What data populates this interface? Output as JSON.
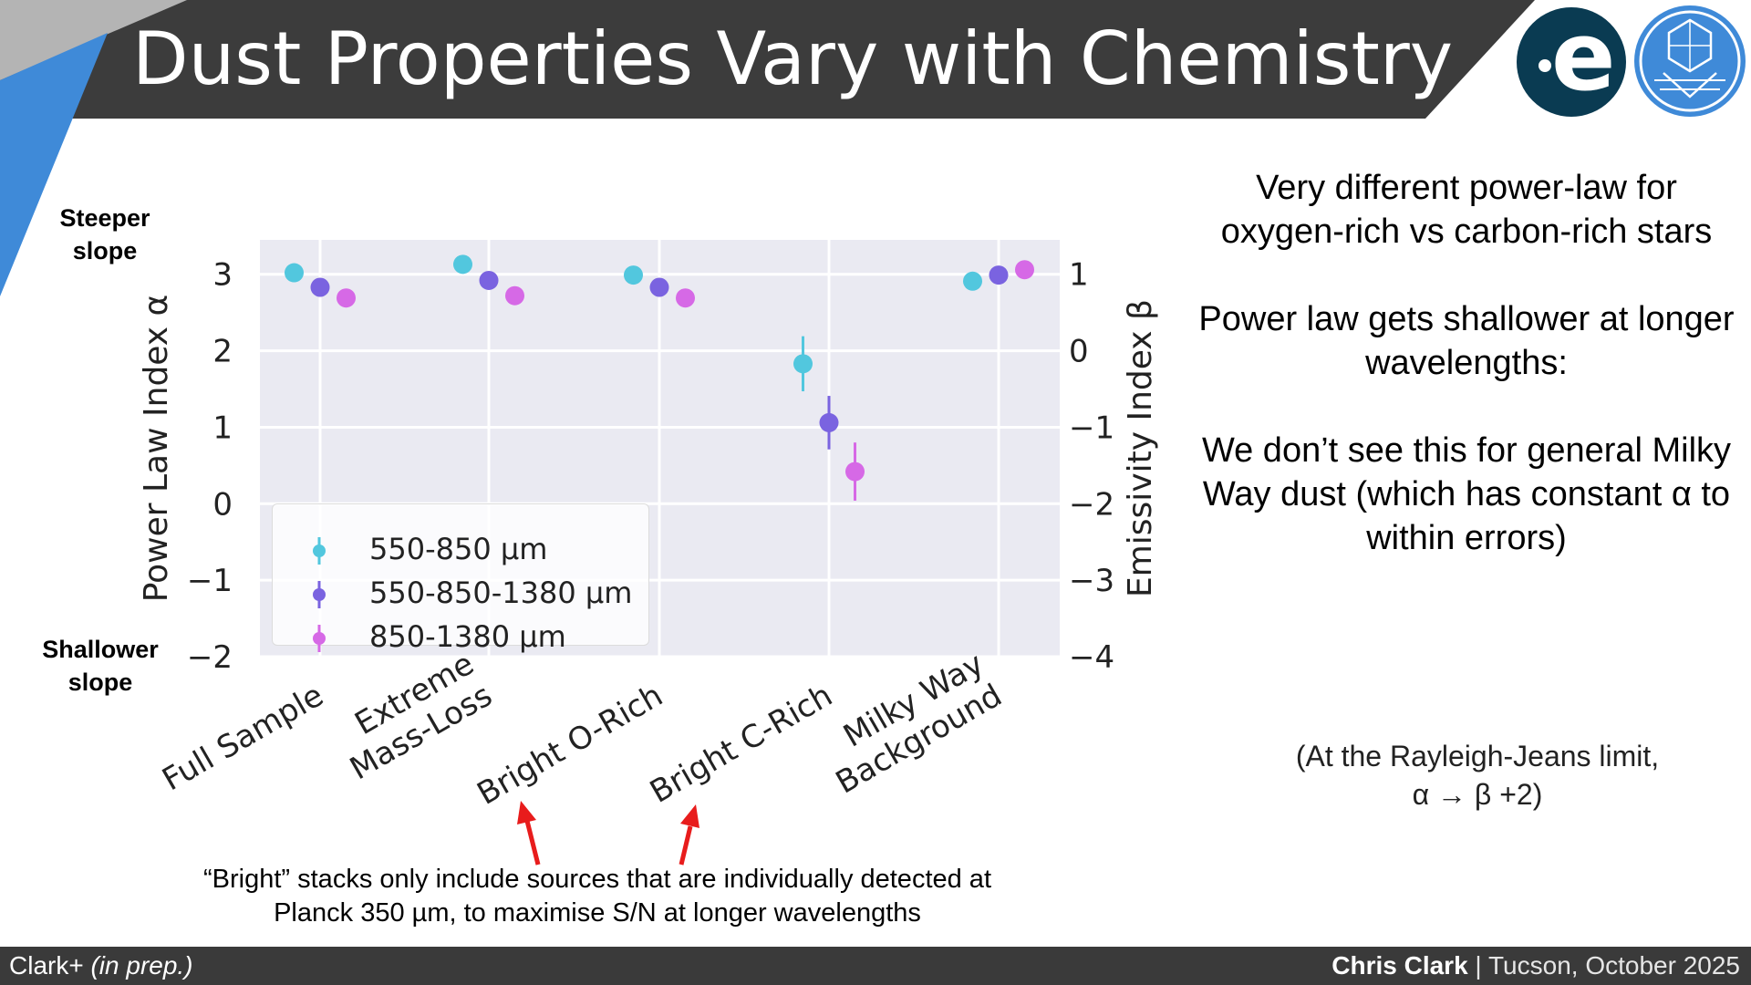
{
  "slide": {
    "title": "Dust Properties Vary with Chemistry",
    "logos": {
      "esa": "esa-logo",
      "jwst": "jwst-logo"
    }
  },
  "side_labels": {
    "steeper": "Steeper slope",
    "shallower": "Shallower slope"
  },
  "right_panel": {
    "paragraph1": "Very different power-law for oxygen-rich vs carbon-rich stars",
    "paragraph2": "Power law gets shallower at longer wavelengths:",
    "paragraph3": "We don’t see this for general Milky Way dust (which has constant α to within errors)",
    "rj_note": "(At the Rayleigh-Jeans limit, α → β +2)"
  },
  "footnote": "“Bright” stacks only include sources that are individually detected at Planck 350 µm, to maximise S/N at longer wavelengths",
  "footer": {
    "citation": "Clark+ ",
    "citation_italic": "(in prep.)",
    "author": "Chris Clark",
    "separator": " | ",
    "event": "Tucson, October 2025"
  },
  "colors": {
    "title_bar": "#3c3c3c",
    "accent_blue": "#3f8ad8",
    "gray": "#b4b4b4",
    "plot_bg": "#eaeaf2",
    "series_cyan": "#52c7de",
    "series_purple": "#7a63e0",
    "series_magenta": "#d669e6",
    "arrow_red": "#e81c1c"
  },
  "chart_data": {
    "type": "scatter",
    "categories": [
      "Full Sample",
      "Extreme Mass-Loss",
      "Bright O-Rich",
      "Bright C-Rich",
      "Milky Way Background"
    ],
    "category_lines": [
      [
        "Full Sample"
      ],
      [
        "Extreme",
        "Mass-Loss"
      ],
      [
        "Bright O-Rich"
      ],
      [
        "Bright C-Rich"
      ],
      [
        "Milky Way",
        "Background"
      ]
    ],
    "ylabel": "Power Law Index α",
    "y2label": "Emissivity Index β",
    "ylim": [
      -2,
      3.45
    ],
    "yticks": [
      -2,
      -1,
      0,
      1,
      2,
      3
    ],
    "ytick_labels": [
      "−2",
      "−1",
      "0",
      "1",
      "2",
      "3"
    ],
    "y2ticks": [
      -4,
      -3,
      -2,
      -1,
      0,
      1
    ],
    "y2tick_labels": [
      "−4",
      "−3",
      "−2",
      "−1",
      "0",
      "1"
    ],
    "y2_offset": -2,
    "grid": true,
    "legend_position": "lower-left",
    "series": [
      {
        "name": "550-850 µm",
        "color": "#52c7de",
        "offset": -0.15,
        "values": [
          3.02,
          3.13,
          2.99,
          1.83,
          2.91
        ],
        "errors": [
          0.03,
          0.03,
          0.03,
          0.36,
          0.03
        ]
      },
      {
        "name": "550-850-1380 µm",
        "color": "#7a63e0",
        "offset": 0,
        "values": [
          2.83,
          2.92,
          2.83,
          1.06,
          2.99
        ],
        "errors": [
          0.03,
          0.03,
          0.03,
          0.35,
          0.03
        ]
      },
      {
        "name": "850-1380 µm",
        "color": "#d669e6",
        "offset": 0.15,
        "values": [
          2.69,
          2.72,
          2.69,
          0.42,
          3.06
        ],
        "errors": [
          0.03,
          0.03,
          0.03,
          0.38,
          0.03
        ]
      }
    ]
  }
}
